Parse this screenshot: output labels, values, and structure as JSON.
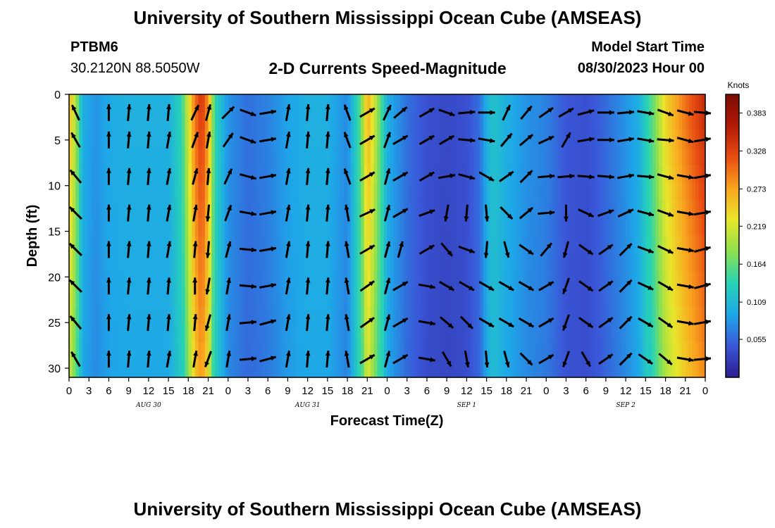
{
  "header": {
    "title": "University of Southern Mississippi Ocean Cube (AMSEAS)",
    "station": "PTBM6",
    "coordinates": "30.2120N  88.5050W",
    "subtitle": "2-D Currents Speed-Magnitude",
    "model_start_label": "Model Start Time",
    "model_start_value": "08/30/2023 Hour 00"
  },
  "footer": {
    "title": "University of Southern Mississippi Ocean Cube (AMSEAS)"
  },
  "chart_data": {
    "type": "heatmap",
    "title": "2-D Currents Speed-Magnitude",
    "xlabel": "Forecast Time(Z)",
    "ylabel": "Depth (ft)",
    "x_tick_labels": [
      "0",
      "3",
      "6",
      "9",
      "12",
      "15",
      "18",
      "21",
      "0",
      "3",
      "6",
      "9",
      "12",
      "15",
      "18",
      "21",
      "0",
      "3",
      "6",
      "9",
      "12",
      "15",
      "18",
      "21",
      "0",
      "3",
      "6",
      "9",
      "12",
      "15",
      "18",
      "21",
      "0"
    ],
    "day_labels": [
      {
        "label": "AUG 30",
        "hour": 12
      },
      {
        "label": "AUG 31",
        "hour": 36
      },
      {
        "label": "SEP 1",
        "hour": 60
      },
      {
        "label": "SEP 2",
        "hour": 84
      }
    ],
    "x_range_hours": [
      0,
      96
    ],
    "y_ticks": [
      0,
      5,
      10,
      15,
      20,
      25,
      30
    ],
    "ylim": [
      31,
      0
    ],
    "colorbar": {
      "unit": "Knots",
      "ticks": [
        0.055,
        0.109,
        0.164,
        0.219,
        0.273,
        0.328,
        0.383
      ],
      "tick_labels": [
        "0.055",
        "0.109",
        "0.164",
        "0.219",
        "0.273",
        "0.328",
        "0.383"
      ],
      "range": [
        0.0,
        0.41
      ],
      "colors": [
        "#2b1d8e",
        "#3a57d8",
        "#1ea7e8",
        "#27d3b5",
        "#8be04f",
        "#e8e62b",
        "#f9a51f",
        "#e84d12",
        "#b11a06",
        "#7a0b03"
      ]
    },
    "speed_profile": [
      {
        "hour": 0,
        "speed": 0.26
      },
      {
        "hour": 1,
        "speed": 0.2
      },
      {
        "hour": 2,
        "speed": 0.1
      },
      {
        "hour": 4,
        "speed": 0.08
      },
      {
        "hour": 6,
        "speed": 0.095
      },
      {
        "hour": 9,
        "speed": 0.1
      },
      {
        "hour": 12,
        "speed": 0.1
      },
      {
        "hour": 15,
        "speed": 0.1
      },
      {
        "hour": 17,
        "speed": 0.14
      },
      {
        "hour": 19,
        "speed": 0.3
      },
      {
        "hour": 20,
        "speed": 0.34
      },
      {
        "hour": 21,
        "speed": 0.28
      },
      {
        "hour": 22,
        "speed": 0.14
      },
      {
        "hour": 24,
        "speed": 0.08
      },
      {
        "hour": 27,
        "speed": 0.06
      },
      {
        "hour": 30,
        "speed": 0.07
      },
      {
        "hour": 33,
        "speed": 0.09
      },
      {
        "hour": 36,
        "speed": 0.1
      },
      {
        "hour": 39,
        "speed": 0.1
      },
      {
        "hour": 42,
        "speed": 0.075
      },
      {
        "hour": 44,
        "speed": 0.16
      },
      {
        "hour": 45,
        "speed": 0.27
      },
      {
        "hour": 46,
        "speed": 0.22
      },
      {
        "hour": 48,
        "speed": 0.1
      },
      {
        "hour": 51,
        "speed": 0.06
      },
      {
        "hour": 54,
        "speed": 0.04
      },
      {
        "hour": 57,
        "speed": 0.035
      },
      {
        "hour": 60,
        "speed": 0.04
      },
      {
        "hour": 62,
        "speed": 0.06
      },
      {
        "hour": 63,
        "speed": 0.1
      },
      {
        "hour": 64,
        "speed": 0.12
      },
      {
        "hour": 66,
        "speed": 0.1
      },
      {
        "hour": 69,
        "speed": 0.08
      },
      {
        "hour": 72,
        "speed": 0.07
      },
      {
        "hour": 75,
        "speed": 0.045
      },
      {
        "hour": 78,
        "speed": 0.04
      },
      {
        "hour": 80,
        "speed": 0.05
      },
      {
        "hour": 84,
        "speed": 0.08
      },
      {
        "hour": 86,
        "speed": 0.1
      },
      {
        "hour": 88,
        "speed": 0.16
      },
      {
        "hour": 90,
        "speed": 0.24
      },
      {
        "hour": 93,
        "speed": 0.3
      },
      {
        "hour": 96,
        "speed": 0.35
      }
    ],
    "vector_hours": [
      1,
      6,
      9,
      12,
      15,
      19,
      21,
      24,
      27,
      30,
      33,
      36,
      39,
      42,
      45,
      48,
      50,
      54,
      57,
      60,
      63,
      66,
      69,
      72,
      75,
      78,
      81,
      84,
      87,
      90,
      93,
      96
    ],
    "vector_depths_ft": [
      2,
      5,
      9,
      13,
      17,
      21,
      25,
      29
    ],
    "vector_directions_deg": [
      [
        335,
        0,
        5,
        5,
        5,
        25,
        15,
        45,
        110,
        80,
        10,
        5,
        5,
        340,
        60,
        25,
        50,
        60,
        110,
        85,
        90,
        25,
        40,
        55,
        60,
        75,
        90,
        85,
        100,
        110,
        105,
        95
      ],
      [
        330,
        0,
        5,
        5,
        10,
        20,
        10,
        35,
        110,
        80,
        10,
        5,
        5,
        340,
        60,
        20,
        60,
        60,
        60,
        95,
        100,
        40,
        50,
        65,
        30,
        80,
        90,
        80,
        100,
        95,
        105,
        80
      ],
      [
        320,
        0,
        5,
        5,
        10,
        15,
        5,
        25,
        105,
        80,
        10,
        5,
        5,
        340,
        60,
        15,
        60,
        60,
        80,
        105,
        120,
        55,
        45,
        85,
        85,
        95,
        95,
        80,
        95,
        105,
        100,
        80
      ],
      [
        315,
        0,
        5,
        5,
        10,
        10,
        185,
        20,
        100,
        80,
        10,
        5,
        5,
        350,
        65,
        15,
        60,
        70,
        190,
        185,
        175,
        135,
        50,
        85,
        180,
        115,
        70,
        65,
        105,
        110,
        100,
        80
      ],
      [
        315,
        0,
        5,
        5,
        10,
        5,
        185,
        15,
        95,
        80,
        10,
        5,
        5,
        350,
        60,
        15,
        15,
        60,
        140,
        110,
        185,
        165,
        125,
        40,
        195,
        125,
        55,
        45,
        110,
        115,
        100,
        75
      ],
      [
        315,
        0,
        5,
        5,
        5,
        0,
        190,
        10,
        95,
        80,
        10,
        5,
        5,
        350,
        55,
        15,
        60,
        100,
        120,
        120,
        120,
        120,
        120,
        60,
        200,
        125,
        55,
        45,
        115,
        120,
        100,
        75
      ],
      [
        320,
        0,
        5,
        5,
        5,
        5,
        195,
        10,
        85,
        75,
        10,
        5,
        5,
        350,
        55,
        15,
        60,
        100,
        130,
        135,
        120,
        120,
        120,
        60,
        200,
        125,
        55,
        45,
        120,
        125,
        100,
        80
      ],
      [
        330,
        0,
        5,
        5,
        10,
        10,
        200,
        10,
        85,
        75,
        10,
        5,
        5,
        350,
        60,
        15,
        60,
        100,
        150,
        170,
        175,
        165,
        135,
        60,
        200,
        150,
        55,
        45,
        125,
        130,
        100,
        85
      ]
    ]
  }
}
